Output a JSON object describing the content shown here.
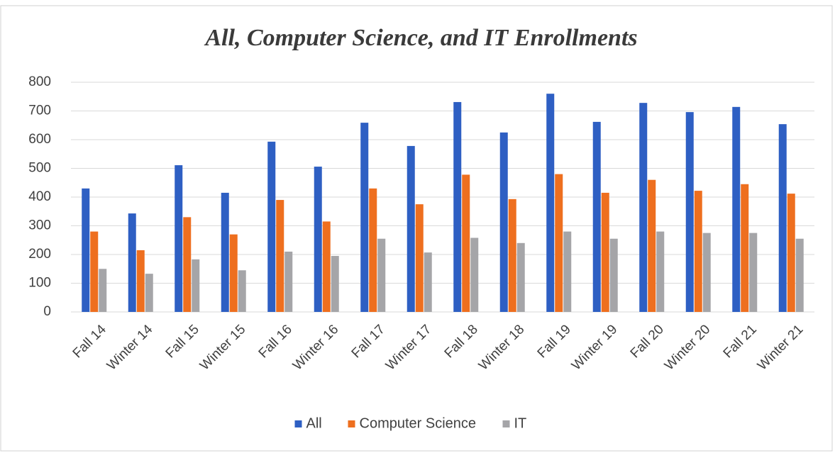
{
  "chart_data": {
    "type": "bar",
    "title": "All, Computer Science, and IT Enrollments",
    "categories": [
      "Fall 14",
      "Winter 14",
      "Fall 15",
      "Winter 15",
      "Fall 16",
      "Winter 16",
      "Fall 17",
      "Winter 17",
      "Fall 18",
      "Winter 18",
      "Fall 19",
      "Winter 19",
      "Fall 20",
      "Winter 20",
      "Fall 21",
      "Winter 21"
    ],
    "series": [
      {
        "name": "All",
        "color": "#2e5fc3",
        "values": [
          430,
          343,
          511,
          415,
          593,
          506,
          659,
          578,
          731,
          625,
          760,
          662,
          728,
          696,
          714,
          654
        ]
      },
      {
        "name": "Computer Science",
        "color": "#ee6f1f",
        "values": [
          280,
          215,
          330,
          270,
          390,
          315,
          430,
          375,
          478,
          393,
          480,
          415,
          460,
          422,
          445,
          412
        ]
      },
      {
        "name": "IT",
        "color": "#a5a5a8",
        "values": [
          150,
          133,
          183,
          145,
          210,
          195,
          255,
          207,
          258,
          240,
          280,
          255,
          280,
          275,
          275,
          255
        ]
      }
    ],
    "ylim": [
      0,
      800
    ],
    "yticks": [
      0,
      100,
      200,
      300,
      400,
      500,
      600,
      700,
      800
    ],
    "grid": true,
    "legend": "bottom"
  }
}
